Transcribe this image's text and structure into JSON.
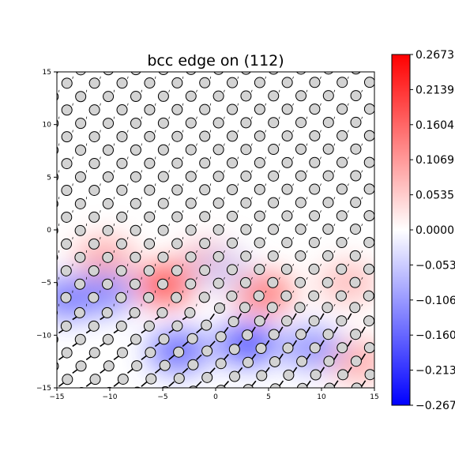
{
  "chart_data": {
    "type": "heatmap",
    "title": "bcc edge on (112)",
    "xlabel": "",
    "ylabel": "",
    "xlim": [
      -15,
      15
    ],
    "ylim": [
      -15,
      15
    ],
    "x_ticks": [
      "−15",
      "−10",
      "−5",
      "0",
      "5",
      "10",
      "15"
    ],
    "y_ticks": [
      "15",
      "10",
      "5",
      "0",
      "−5",
      "−10",
      "−15"
    ],
    "colormap": "bwr",
    "colorbar": {
      "min": -0.2673,
      "max": 0.2673,
      "ticks": [
        "0.2673",
        "0.2139",
        "0.1604",
        "0.1069",
        "0.0535",
        "0.0000",
        "−0.0535",
        "−0.1069",
        "−0.1604",
        "−0.2139",
        "−0.2673"
      ]
    },
    "field_blobs": [
      {
        "x": -4.8,
        "y": -5.2,
        "value": 0.2
      },
      {
        "x": -0.5,
        "y": -3.2,
        "value": 0.14
      },
      {
        "x": 4.5,
        "y": -6.0,
        "value": 0.16
      },
      {
        "x": -10.5,
        "y": -2.6,
        "value": 0.1
      },
      {
        "x": 12.5,
        "y": -5.0,
        "value": 0.08
      },
      {
        "x": 13.5,
        "y": -12.5,
        "value": 0.1
      },
      {
        "x": -14,
        "y": -6.5,
        "value": -0.16
      },
      {
        "x": -10.5,
        "y": -6.0,
        "value": -0.14
      },
      {
        "x": -3.5,
        "y": -11.5,
        "value": -0.18
      },
      {
        "x": 3,
        "y": -10.8,
        "value": -0.2
      },
      {
        "x": 9,
        "y": -11.2,
        "value": -0.13
      },
      {
        "x": 0.5,
        "y": -3.8,
        "value": -0.05
      }
    ],
    "atoms_note": "",
    "dislocation_center": [
      0,
      -7.5
    ]
  },
  "colors": {
    "atom_fill": "#d3d3d3",
    "atom_edge": "#000000",
    "positive": "#ff0000",
    "negative": "#0000ff"
  }
}
